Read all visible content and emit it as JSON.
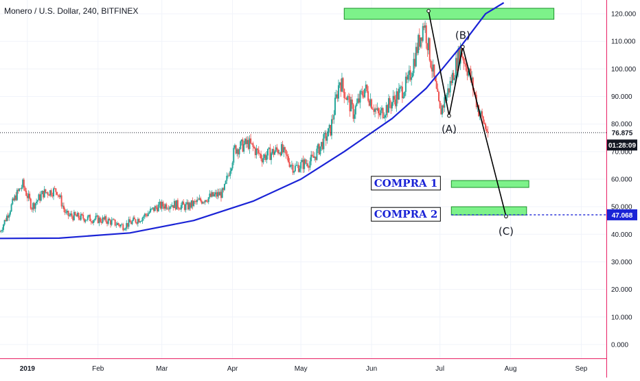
{
  "header": {
    "title": "Monero / U.S. Dollar, 240, BITFINEX"
  },
  "colors": {
    "up_candle": "#26a69a",
    "down_candle": "#ef5350",
    "curve": "#1a23d6",
    "zone_fill": "#7df28a",
    "zone_stroke": "#1b8f2a",
    "target_line": "#1a23d6",
    "price_line": "#131722",
    "axis_line": "#e91e63",
    "grid": "#f0f3fa"
  },
  "chart_data": {
    "type": "candlestick",
    "y_axis": {
      "ticks": [
        0,
        10,
        20,
        30,
        40,
        50,
        60,
        70,
        80,
        90,
        100,
        110,
        120
      ],
      "tick_labels": [
        "0.000",
        "10.000",
        "20.000",
        "30.000",
        "40.000",
        "50.000",
        "60.000",
        "70.000",
        "80.000",
        "90.000",
        "100.000",
        "110.000",
        "120.000"
      ],
      "ylim": [
        -5,
        125
      ]
    },
    "x_axis": {
      "labels": [
        "2019",
        "Feb",
        "Mar",
        "Apr",
        "May",
        "Jun",
        "Jul",
        "Aug",
        "Sep"
      ],
      "dates": [
        "2019-01-01",
        "2019-02-01",
        "2019-03-01",
        "2019-04-01",
        "2019-05-01",
        "2019-06-01",
        "2019-07-01",
        "2019-08-01",
        "2019-09-01"
      ],
      "xlim": [
        "2018-12-20",
        "2019-09-12"
      ]
    },
    "grid": true,
    "price_path": [
      [
        "2018-12-20",
        41
      ],
      [
        "2018-12-27",
        54
      ],
      [
        "2018-12-30",
        58
      ],
      [
        "2019-01-03",
        50
      ],
      [
        "2019-01-08",
        55
      ],
      [
        "2019-01-14",
        56
      ],
      [
        "2019-01-18",
        47
      ],
      [
        "2019-01-25",
        46
      ],
      [
        "2019-02-05",
        45
      ],
      [
        "2019-02-12",
        43
      ],
      [
        "2019-02-20",
        46
      ],
      [
        "2019-02-27",
        50
      ],
      [
        "2019-03-05",
        51
      ],
      [
        "2019-03-12",
        50
      ],
      [
        "2019-03-20",
        53
      ],
      [
        "2019-03-28",
        55
      ],
      [
        "2019-04-02",
        71
      ],
      [
        "2019-04-08",
        73
      ],
      [
        "2019-04-14",
        68
      ],
      [
        "2019-04-22",
        71
      ],
      [
        "2019-04-28",
        64
      ],
      [
        "2019-05-06",
        67
      ],
      [
        "2019-05-14",
        78
      ],
      [
        "2019-05-18",
        96
      ],
      [
        "2019-05-24",
        84
      ],
      [
        "2019-05-29",
        93
      ],
      [
        "2019-06-04",
        83
      ],
      [
        "2019-06-10",
        88
      ],
      [
        "2019-06-17",
        95
      ],
      [
        "2019-06-24",
        117
      ],
      [
        "2019-06-27",
        103
      ],
      [
        "2019-07-01",
        84
      ],
      [
        "2019-07-05",
        93
      ],
      [
        "2019-07-10",
        107
      ],
      [
        "2019-07-14",
        98
      ],
      [
        "2019-07-18",
        85
      ],
      [
        "2019-07-22",
        76.875
      ]
    ],
    "last_price": 76.875,
    "countdown": "01:28:09",
    "target_price": 47.068,
    "curve": {
      "points": [
        [
          "2018-12-20",
          38.5
        ],
        [
          "2019-01-15",
          38.6
        ],
        [
          "2019-02-15",
          40.5
        ],
        [
          "2019-03-15",
          45
        ],
        [
          "2019-04-10",
          52
        ],
        [
          "2019-05-01",
          60
        ],
        [
          "2019-05-20",
          70
        ],
        [
          "2019-06-10",
          82
        ],
        [
          "2019-06-25",
          93
        ],
        [
          "2019-07-10",
          108
        ],
        [
          "2019-07-21",
          120
        ],
        [
          "2019-07-29",
          124
        ]
      ]
    },
    "wave_path": [
      [
        "2019-06-26",
        121
      ],
      [
        "2019-07-05",
        83
      ],
      [
        "2019-07-11",
        108
      ],
      [
        "2019-07-30",
        46.5
      ]
    ],
    "wave_labels": [
      {
        "text": "(A)",
        "x": "2019-07-05",
        "y": 78
      },
      {
        "text": "(B)",
        "x": "2019-07-11",
        "y": 112
      },
      {
        "text": "(C)",
        "x": "2019-07-30",
        "y": 41
      }
    ],
    "zones": [
      {
        "x1": "2019-05-20",
        "x2": "2019-08-20",
        "y1": 118,
        "y2": 122
      },
      {
        "x1": "2019-07-06",
        "x2": "2019-08-09",
        "y1": 57,
        "y2": 59.5
      },
      {
        "x1": "2019-07-06",
        "x2": "2019-08-08",
        "y1": 47,
        "y2": 50
      }
    ],
    "annotations": [
      {
        "text": "COMPRA 1",
        "x": "2019-06-30",
        "y": 58.3
      },
      {
        "text": "COMPRA 2",
        "x": "2019-06-30",
        "y": 47
      }
    ]
  }
}
